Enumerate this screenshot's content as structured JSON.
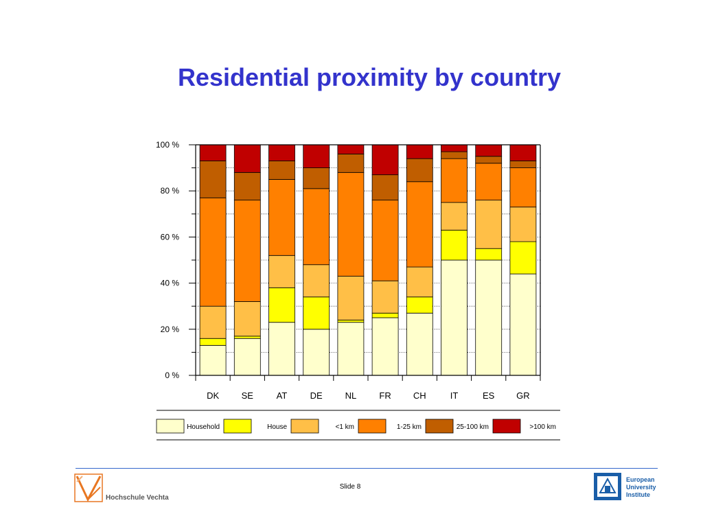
{
  "slide": {
    "title": "Residential proximity by country",
    "number_label": "Slide 8"
  },
  "logos": {
    "left": {
      "name": "Hochschule Vechta",
      "accent": "#e87722"
    },
    "right": {
      "lines": [
        "European",
        "University",
        "Institute"
      ],
      "accent": "#1a5ea8"
    }
  },
  "colors": {
    "title": "#3333cc",
    "footer_line": "#3366cc"
  },
  "chart_data": {
    "type": "bar",
    "stacked": true,
    "normalized_percent": true,
    "categories": [
      "DK",
      "SE",
      "AT",
      "DE",
      "NL",
      "FR",
      "CH",
      "IT",
      "ES",
      "GR"
    ],
    "ylim": [
      0,
      100
    ],
    "yticks": [
      "0 %",
      "20 %",
      "40 %",
      "60 %",
      "80 %",
      "100 %"
    ],
    "grid": true,
    "legend_position": "bottom",
    "series": [
      {
        "name": "Household",
        "color": "#ffffcc",
        "values": [
          13,
          16,
          23,
          20,
          23,
          25,
          27,
          50,
          50,
          44
        ]
      },
      {
        "name": "House",
        "color": "#ffff00",
        "values": [
          3,
          1,
          15,
          14,
          1,
          2,
          7,
          13,
          5,
          14
        ]
      },
      {
        "name": "<1 km",
        "color": "#ffbf47",
        "values": [
          14,
          15,
          14,
          14,
          19,
          14,
          13,
          12,
          21,
          15
        ]
      },
      {
        "name": "1-25 km",
        "color": "#ff8000",
        "values": [
          47,
          44,
          33,
          33,
          45,
          35,
          37,
          19,
          16,
          17
        ]
      },
      {
        "name": "25-100 km",
        "color": "#c05e00",
        "values": [
          16,
          12,
          8,
          9,
          8,
          11,
          10,
          3,
          3,
          3
        ]
      },
      {
        "name": ">100 km",
        "color": "#c00000",
        "values": [
          7,
          12,
          7,
          10,
          4,
          13,
          6,
          3,
          5,
          7
        ]
      }
    ]
  }
}
